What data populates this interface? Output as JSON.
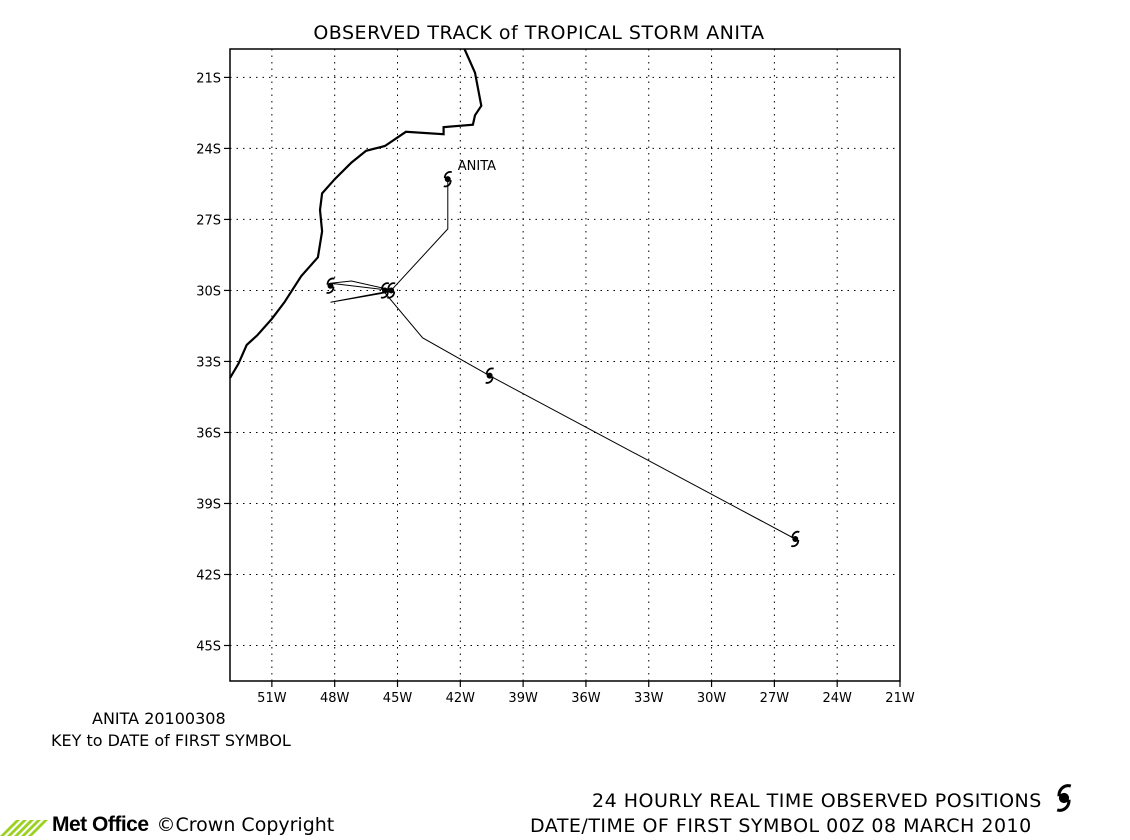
{
  "title": "OBSERVED TRACK of TROPICAL STORM ANITA",
  "storm_label": "ANITA",
  "key": {
    "id_date": "ANITA 20100308",
    "caption": "KEY to DATE of FIRST SYMBOL"
  },
  "footer": {
    "line1": "24 HOURLY REAL TIME OBSERVED POSITIONS",
    "line2": "DATE/TIME OF FIRST SYMBOL 00Z 08 MARCH 2010",
    "logo": "Met Office",
    "copyright_symbol": "©",
    "copyright_text": "Crown Copyright"
  },
  "icons": {
    "storm_symbol": "tropical-storm-symbol",
    "logo_mark": "met-office-stripes-icon"
  },
  "chart_data": {
    "type": "map",
    "xlim": [
      -53,
      -21
    ],
    "ylim": [
      -46.5,
      -19.8
    ],
    "x_ticks": [
      {
        "value": -51,
        "label": "51W"
      },
      {
        "value": -48,
        "label": "48W"
      },
      {
        "value": -45,
        "label": "45W"
      },
      {
        "value": -42,
        "label": "42W"
      },
      {
        "value": -39,
        "label": "39W"
      },
      {
        "value": -36,
        "label": "36W"
      },
      {
        "value": -33,
        "label": "33W"
      },
      {
        "value": -30,
        "label": "30W"
      },
      {
        "value": -27,
        "label": "27W"
      },
      {
        "value": -24,
        "label": "24W"
      },
      {
        "value": -21,
        "label": "21W"
      }
    ],
    "y_ticks": [
      {
        "value": -21,
        "label": "21S"
      },
      {
        "value": -24,
        "label": "24S"
      },
      {
        "value": -27,
        "label": "27S"
      },
      {
        "value": -30,
        "label": "30S"
      },
      {
        "value": -33,
        "label": "33S"
      },
      {
        "value": -36,
        "label": "36S"
      },
      {
        "value": -39,
        "label": "39S"
      },
      {
        "value": -42,
        "label": "42S"
      },
      {
        "value": -45,
        "label": "45S"
      }
    ],
    "grid": true,
    "track": [
      [
        -42.6,
        -25.3
      ],
      [
        -42.6,
        -27.4
      ],
      [
        -45.3,
        -30.0
      ],
      [
        -48.2,
        -29.7
      ],
      [
        -47.2,
        -29.6
      ],
      [
        -45.2,
        -30.0
      ],
      [
        -48.2,
        -30.5
      ],
      [
        -45.6,
        -30.1
      ],
      [
        -43.8,
        -32.0
      ],
      [
        -40.6,
        -33.6
      ],
      [
        -26.0,
        -40.5
      ]
    ],
    "symbols": [
      [
        -26.0,
        -40.5
      ],
      [
        -40.6,
        -33.6
      ],
      [
        -45.6,
        -30.0
      ],
      [
        -45.3,
        -30.0
      ],
      [
        -48.2,
        -29.8
      ],
      [
        -42.6,
        -25.3
      ]
    ],
    "coastline": [
      [
        -41.8,
        -19.8
      ],
      [
        -41.3,
        -20.8
      ],
      [
        -41.0,
        -22.2
      ],
      [
        -41.3,
        -22.6
      ],
      [
        -41.4,
        -23.0
      ],
      [
        -42.8,
        -23.1
      ],
      [
        -42.8,
        -23.4
      ],
      [
        -44.6,
        -23.3
      ],
      [
        -45.6,
        -23.9
      ],
      [
        -46.5,
        -24.1
      ],
      [
        -47.2,
        -24.6
      ],
      [
        -48.0,
        -25.3
      ],
      [
        -48.6,
        -25.9
      ],
      [
        -48.7,
        -26.6
      ],
      [
        -48.6,
        -27.5
      ],
      [
        -48.8,
        -28.6
      ],
      [
        -49.6,
        -29.4
      ],
      [
        -50.4,
        -30.5
      ],
      [
        -51.0,
        -31.2
      ],
      [
        -51.7,
        -31.9
      ],
      [
        -52.2,
        -32.3
      ],
      [
        -52.6,
        -33.1
      ],
      [
        -53.0,
        -33.7
      ]
    ]
  }
}
